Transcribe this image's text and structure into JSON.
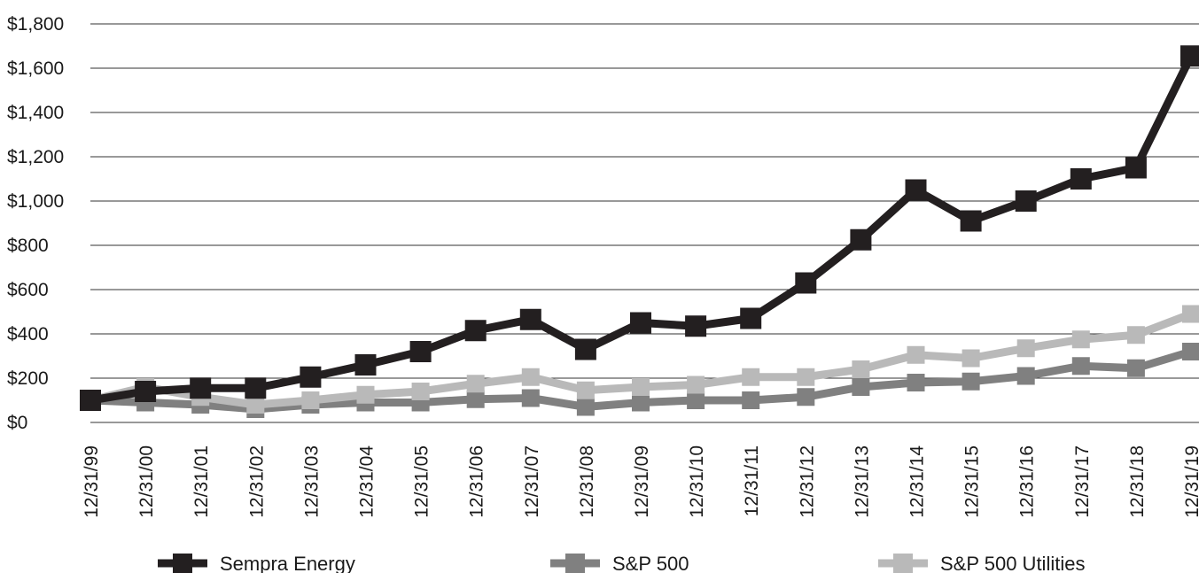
{
  "chart_data": {
    "type": "line",
    "title": "",
    "xlabel": "",
    "ylabel": "",
    "categories": [
      "12/31/99",
      "12/31/00",
      "12/31/01",
      "12/31/02",
      "12/31/03",
      "12/31/04",
      "12/31/05",
      "12/31/06",
      "12/31/07",
      "12/31/08",
      "12/31/09",
      "12/31/10",
      "12/31/11",
      "12/31/12",
      "12/31/13",
      "12/31/14",
      "12/31/15",
      "12/31/16",
      "12/31/17",
      "12/31/18",
      "12/31/19"
    ],
    "y_ticks": [
      "$0",
      "$200",
      "$400",
      "$600",
      "$800",
      "$1,000",
      "$1,200",
      "$1,400",
      "$1,600",
      "$1,800"
    ],
    "ylim": [
      0,
      1800
    ],
    "grid": "horizontal",
    "legend": "bottom",
    "series": [
      {
        "name": "Sempra Energy",
        "color": "#231f20",
        "values": [
          100,
          140,
          155,
          155,
          205,
          260,
          320,
          415,
          465,
          330,
          450,
          435,
          470,
          630,
          825,
          1050,
          910,
          1000,
          1100,
          1150,
          1655
        ]
      },
      {
        "name": "S&P 500",
        "color": "#808080",
        "values": [
          100,
          90,
          80,
          60,
          80,
          90,
          90,
          105,
          110,
          70,
          90,
          100,
          100,
          115,
          160,
          180,
          185,
          210,
          255,
          245,
          320
        ]
      },
      {
        "name": "S&P 500 Utilities",
        "color": "#b9b9b9",
        "values": [
          100,
          160,
          115,
          80,
          100,
          125,
          140,
          175,
          205,
          145,
          160,
          170,
          205,
          205,
          240,
          305,
          290,
          335,
          375,
          395,
          490
        ]
      }
    ]
  }
}
